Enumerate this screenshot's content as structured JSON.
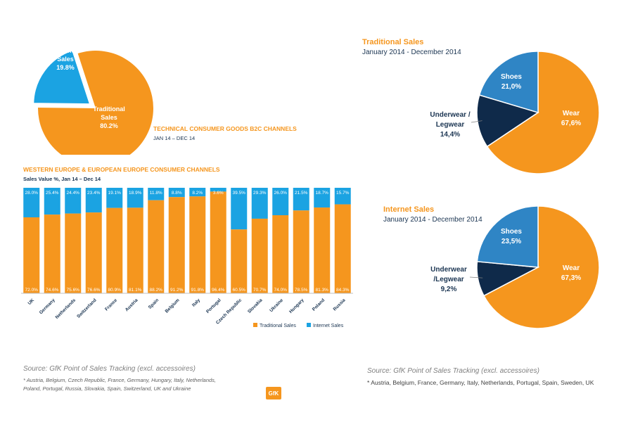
{
  "colors": {
    "traditional": "#f5961e",
    "internet": "#1ba3e2",
    "shoes": "#2f85c5",
    "underwear": "#0f2a4a",
    "label_navy": "#1b3552"
  },
  "top_pie": {
    "title": "TECHNICAL CONSUMER GOODS B2C CHANNELS",
    "subtitle": "JAN 14 – DEC 14",
    "slices": [
      {
        "label": "Internet\nSales",
        "pct": "19.8%"
      },
      {
        "label": "Traditional\nSales",
        "pct": "80.2%"
      }
    ]
  },
  "bar_block": {
    "title": "WESTERN EUROPE & EUROPEAN EUROPE CONSUMER CHANNELS",
    "subtitle": "Sales Value %, Jan 14 – Dec 14",
    "legend": [
      "Traditional Sales",
      "Internet Sales"
    ]
  },
  "right_top": {
    "title": "Traditional Sales",
    "subtitle": "January 2014 - December 2014",
    "labels": {
      "shoes": "Shoes",
      "shoes_pct": "21,0%",
      "wear": "Wear",
      "wear_pct": "67,6%",
      "under1": "Underwear /",
      "under2": "Legwear",
      "under_pct": "14,4%"
    }
  },
  "right_bottom": {
    "title": "Internet Sales",
    "subtitle": "January 2014 - December 2014",
    "labels": {
      "shoes": "Shoes",
      "shoes_pct": "23,5%",
      "wear": "Wear",
      "wear_pct": "67,3%",
      "under1": "Underwear",
      "under2": "/Legwear",
      "under_pct": "9,2%"
    }
  },
  "footer_left": {
    "source": "Source: GfK Point of Sales Tracking  (excl. accessoires)",
    "note1": "* Austria, Belgium, Czech Republic, France, Germany, Hungary, Italy, Netherlands,",
    "note2": "Poland, Portugal, Russia, Slovakia, Spain, Switzerland, UK and Ukraine"
  },
  "footer_right": {
    "source": "Source: GfK Point of Sales Tracking  (excl. accessoires)",
    "note": "* Austria,  Belgium, France, Germany, Italy,  Netherlands, Portugal, Spain, Sweden,  UK"
  },
  "logo_text": "GfK",
  "chart_data": [
    {
      "type": "pie",
      "title": "TECHNICAL CONSUMER GOODS B2C CHANNELS",
      "subtitle": "JAN 14 – DEC 14",
      "labels": [
        "Internet Sales",
        "Traditional Sales"
      ],
      "values": [
        19.8,
        80.2
      ]
    },
    {
      "type": "bar",
      "stacked": true,
      "title": "WESTERN EUROPE & EUROPEAN EUROPE CONSUMER CHANNELS",
      "subtitle": "Sales Value %, Jan 14 – Dec 14",
      "categories": [
        "UK",
        "Germany",
        "Netherlands",
        "Switzerland",
        "France",
        "Austria",
        "Spain",
        "Belgium",
        "Italy",
        "Portugal",
        "Czech Republic",
        "Slovakia",
        "Ukraine",
        "Hungary",
        "Poland",
        "Russia"
      ],
      "series": [
        {
          "name": "Traditional Sales",
          "values": [
            72.0,
            74.6,
            75.6,
            76.6,
            80.9,
            81.1,
            88.2,
            91.2,
            91.8,
            96.4,
            60.5,
            70.7,
            74.0,
            78.5,
            81.3,
            84.3
          ]
        },
        {
          "name": "Internet Sales",
          "values": [
            28.0,
            25.4,
            24.4,
            23.4,
            19.1,
            18.9,
            11.8,
            8.8,
            8.2,
            3.6,
            39.5,
            29.3,
            26.0,
            21.5,
            18.7,
            15.7
          ]
        }
      ],
      "value_labels": {
        "traditional": [
          "72.0%",
          "74.6%",
          "75.6%",
          "76.6%",
          "80.9%",
          "81.1%",
          "88.2%",
          "91.2%",
          "91.8%",
          "96.4%",
          "60.5%",
          "70.7%",
          "74.0%",
          "78.5%",
          "81.3%",
          "84.3%"
        ],
        "internet": [
          "28.0%",
          "25.4%",
          "24.4%",
          "23.4%",
          "19.1%",
          "18.9%",
          "11.8%",
          "8.8%",
          "8.2%",
          "3.6%",
          "39.5%",
          "29.3%",
          "26.0%",
          "21.5%",
          "18.7%",
          "15.7%"
        ]
      },
      "ylim": [
        0,
        100
      ],
      "legend": "bottom-right"
    },
    {
      "type": "pie",
      "title": "Traditional Sales",
      "subtitle": "January 2014 - December 2014",
      "labels": [
        "Wear",
        "Underwear / Legwear",
        "Shoes"
      ],
      "values": [
        67.6,
        14.4,
        21.0
      ]
    },
    {
      "type": "pie",
      "title": "Internet Sales",
      "subtitle": "January 2014 - December 2014",
      "labels": [
        "Wear",
        "Underwear /Legwear",
        "Shoes"
      ],
      "values": [
        67.3,
        9.2,
        23.5
      ]
    }
  ]
}
